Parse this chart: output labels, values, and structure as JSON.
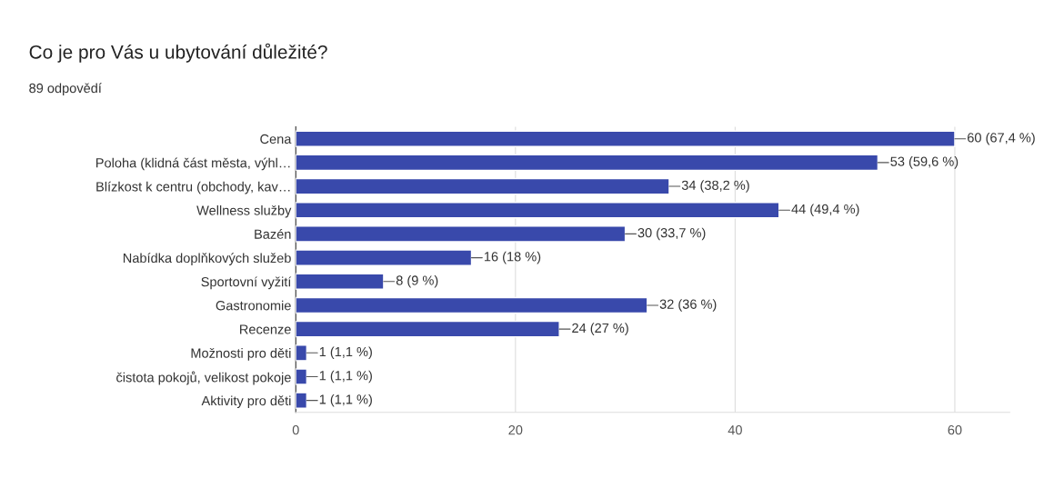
{
  "chart_data": {
    "type": "bar",
    "orientation": "horizontal",
    "title": "Co je pro Vás u ubytování důležité?",
    "subtitle": "89 odpovědí",
    "categories": [
      "Cena",
      "Poloha (klidná část města, výhl…",
      "Blízkost k centru (obchody, kav…",
      "Wellness služby",
      "Bazén",
      "Nabídka doplňkových služeb",
      "Sportovní vyžití",
      "Gastronomie",
      "Recenze",
      "Možnosti pro děti",
      "čistota pokojů, velikost pokoje",
      "Aktivity pro děti"
    ],
    "values": [
      60,
      53,
      34,
      44,
      30,
      16,
      8,
      32,
      24,
      1,
      1,
      1
    ],
    "value_labels": [
      "60 (67,4 %)",
      "53 (59,6 %)",
      "34 (38,2 %)",
      "44 (49,4 %)",
      "30 (33,7 %)",
      "16 (18 %)",
      "8 (9 %)",
      "32 (36 %)",
      "24 (27 %)",
      "1 (1,1 %)",
      "1 (1,1 %)",
      "1 (1,1 %)"
    ],
    "color": "#3949ab",
    "xlim": [
      0,
      65
    ],
    "xticks": [
      0,
      20,
      40,
      60
    ],
    "grid": "x"
  }
}
